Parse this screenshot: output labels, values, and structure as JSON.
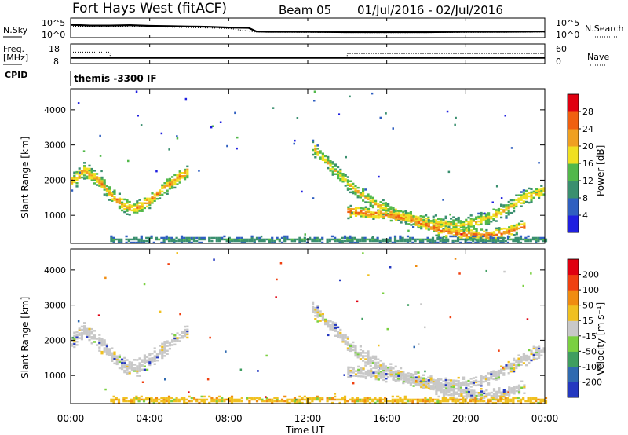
{
  "header": {
    "station": "Fort Hays West (fitACF)",
    "beam": "Beam 05",
    "date_range": "01/Jul/2016 - 02/Jul/2016"
  },
  "left_labels": {
    "nsky": "N.Sky",
    "freq": "Freq.",
    "freq_unit": "[MHz]",
    "cpid": "CPID"
  },
  "right_labels": {
    "nsearch": "N.Search",
    "nave": "Nave"
  },
  "cpid_text": "themis -3300 IF",
  "time_axis": {
    "label": "Time UT",
    "ticks": [
      "00:00",
      "04:00",
      "08:00",
      "12:00",
      "16:00",
      "20:00",
      "00:00"
    ]
  },
  "colors": {
    "power_scale": [
      "#1f1fe0",
      "#2f5fc0",
      "#3a8f6f",
      "#52b84a",
      "#f0e020",
      "#f0a020",
      "#f06010",
      "#e00010"
    ],
    "velocity_scale": [
      "#2438c0",
      "#2f6ab0",
      "#3f9e60",
      "#7ad040",
      "#c8c8c8",
      "#f0c020",
      "#f08c10",
      "#f04010",
      "#e00010"
    ]
  },
  "chart_data": [
    {
      "type": "line",
      "name": "noise-panel",
      "left_axis": {
        "ticks": [
          "10^5",
          "10^0"
        ]
      },
      "right_axis": {
        "ticks": [
          "10^5",
          "10^0"
        ]
      },
      "series": [
        {
          "name": "N.Sky",
          "style": "solid",
          "x": [
            0,
            0.5,
            1,
            2,
            3,
            4,
            5,
            6,
            7,
            8,
            9,
            9.4,
            10,
            12,
            14,
            16,
            18,
            20,
            22,
            24
          ],
          "y": [
            3.4,
            3.3,
            3.2,
            3.2,
            3.3,
            3.1,
            3.0,
            2.9,
            2.8,
            2.6,
            2.5,
            1.4,
            1.3,
            1.3,
            1.2,
            1.2,
            1.2,
            1.3,
            1.3,
            1.4
          ]
        },
        {
          "name": "N.Search",
          "style": "dotted",
          "x": [
            0,
            2,
            4,
            6,
            8,
            9.4,
            12,
            16,
            20,
            24
          ],
          "y": [
            3.0,
            2.9,
            2.8,
            2.6,
            2.3,
            1.2,
            1.1,
            1.0,
            1.1,
            1.2
          ]
        }
      ]
    },
    {
      "type": "line",
      "name": "frequency-panel",
      "left_axis": {
        "ticks": [
          "18",
          "8"
        ]
      },
      "right_axis": {
        "ticks": [
          "60",
          "0"
        ]
      },
      "series": [
        {
          "name": "Freq",
          "style": "solid",
          "x": [
            0,
            24
          ],
          "y": [
            10.5,
            10.5
          ]
        },
        {
          "name": "Nave",
          "style": "dotted",
          "x": [
            0,
            2,
            2,
            14,
            14,
            24
          ],
          "y": [
            14,
            14,
            11,
            11,
            13,
            13
          ]
        }
      ]
    },
    {
      "type": "heatmap",
      "name": "power",
      "ylabel": "Slant Range [km]",
      "xlabel": "Time UT",
      "xlim": [
        0,
        24
      ],
      "ylim": [
        200,
        4600
      ],
      "yticks": [
        1000,
        2000,
        3000,
        4000
      ],
      "colorbar": {
        "label": "Power [dB]",
        "ticks": [
          "4",
          "8",
          "12",
          "16",
          "20",
          "24",
          "28"
        ],
        "range": [
          0,
          32
        ]
      },
      "features": [
        {
          "desc": "arc-morning",
          "t0": 0,
          "t1": 5.9,
          "r_center": [
            1950,
            2250,
            2000,
            1600,
            1250,
            1180,
            1400,
            1700,
            2000,
            2250
          ],
          "width": 260,
          "peak": 26
        },
        {
          "desc": "arc-evening",
          "t0": 12.2,
          "t1": 24,
          "r_center": [
            2900,
            2300,
            1700,
            1300,
            1000,
            850,
            750,
            700,
            850,
            1100,
            1500,
            1700
          ],
          "width": 240,
          "peak": 24
        },
        {
          "desc": "ground-scatter",
          "t0": 14,
          "t1": 23,
          "r_center": [
            1100,
            1050,
            1000,
            900,
            700,
            500,
            450,
            400,
            500,
            700
          ],
          "width": 200,
          "peak": 30
        },
        {
          "desc": "near-range",
          "t0": 2,
          "t1": 24,
          "r_center": [
            280
          ],
          "width": 120,
          "peak": 14
        }
      ]
    },
    {
      "type": "heatmap",
      "name": "velocity",
      "ylabel": "Slant Range [km]",
      "xlabel": "Time UT",
      "xlim": [
        0,
        24
      ],
      "ylim": [
        200,
        4600
      ],
      "yticks": [
        1000,
        2000,
        3000,
        4000
      ],
      "colorbar": {
        "label": "Velocity [m s⁻¹]",
        "ticks": [
          "200",
          "100",
          "50",
          "15",
          "-15",
          "-50",
          "-100",
          "-200"
        ],
        "range": [
          -250,
          250
        ]
      }
    }
  ]
}
